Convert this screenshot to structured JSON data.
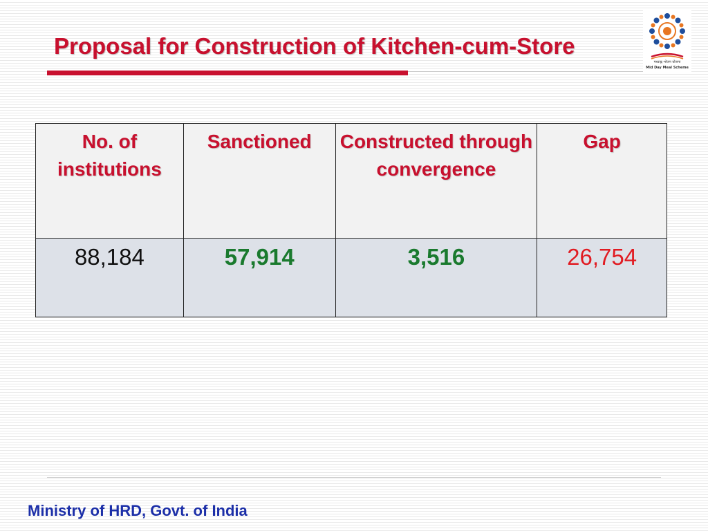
{
  "slide": {
    "title": "Proposal for Construction of Kitchen-cum-Store",
    "footer": "Ministry of HRD, Govt. of India"
  },
  "logo": {
    "icon": "mid-day-meal-emblem",
    "text_hindi": "मध्याह्न भोजन योजना",
    "text_english": "Mid Day Meal Scheme",
    "colors": {
      "blue": "#1f4e9c",
      "orange": "#e87722",
      "red": "#c8102e"
    }
  },
  "table": {
    "headers": [
      "No. of institutions",
      "Sanctioned",
      "Constructed through convergence",
      "Gap"
    ],
    "rows": [
      [
        "88,184",
        "57,914",
        "3,516",
        "26,754"
      ]
    ]
  },
  "colors": {
    "title": "#c8102e",
    "header_text": "#c8102e",
    "green_value": "#1a7a2e",
    "gap_value": "#e11b22",
    "footer": "#1c2fa8"
  }
}
